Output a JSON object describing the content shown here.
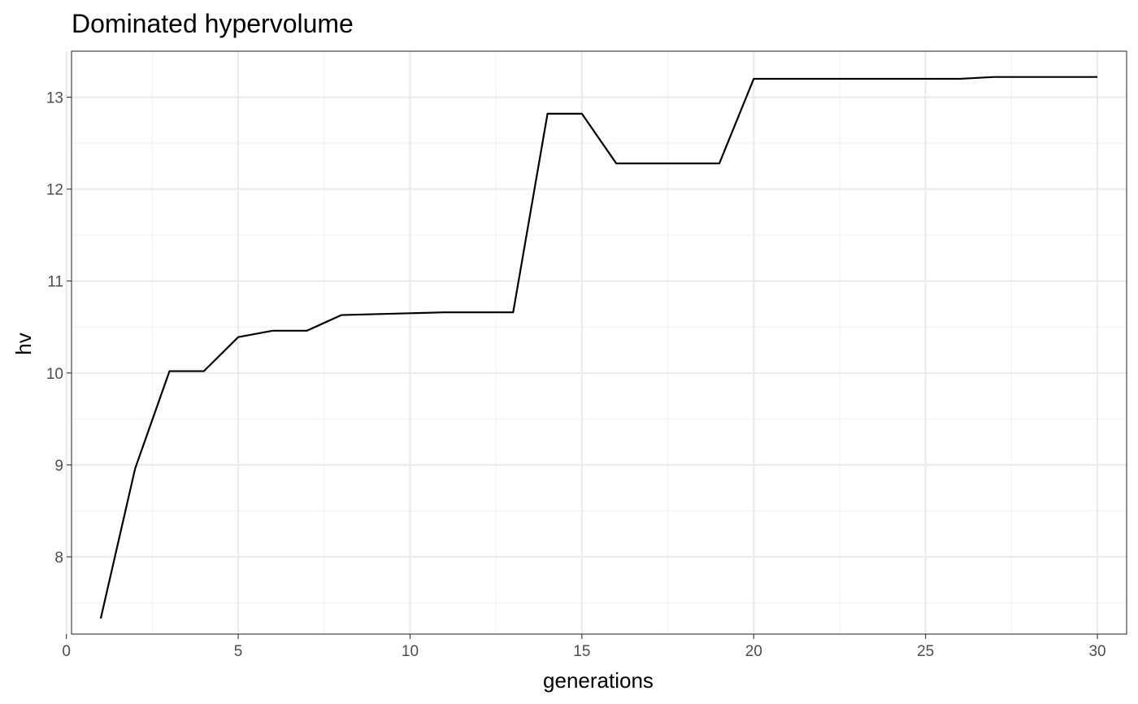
{
  "chart_data": {
    "type": "line",
    "title": "Dominated hypervolume",
    "xlabel": "generations",
    "ylabel": "hv",
    "xlim": [
      0.15,
      30.85
    ],
    "ylim": [
      7.16,
      13.5
    ],
    "x_ticks": [
      0,
      5,
      10,
      15,
      20,
      25,
      30
    ],
    "y_ticks": [
      8,
      9,
      10,
      11,
      12,
      13
    ],
    "x_minor": [
      2.5,
      7.5,
      12.5,
      17.5,
      22.5,
      27.5
    ],
    "y_minor": [
      7.5,
      8.5,
      9.5,
      10.5,
      11.5,
      12.5
    ],
    "grid": true,
    "legend": "none",
    "series": [
      {
        "color": "#000000",
        "x": [
          1,
          2,
          3,
          4,
          5,
          6,
          7,
          8,
          9,
          10,
          11,
          12,
          13,
          14,
          15,
          16,
          17,
          18,
          19,
          20,
          21,
          22,
          23,
          24,
          25,
          26,
          27,
          28,
          29,
          30
        ],
        "y": [
          7.33,
          8.96,
          10.02,
          10.02,
          10.39,
          10.46,
          10.46,
          10.63,
          10.64,
          10.65,
          10.66,
          10.66,
          10.66,
          12.82,
          12.82,
          12.28,
          12.28,
          12.28,
          12.28,
          13.2,
          13.2,
          13.2,
          13.2,
          13.2,
          13.2,
          13.2,
          13.22,
          13.22,
          13.22,
          13.22
        ]
      }
    ]
  }
}
